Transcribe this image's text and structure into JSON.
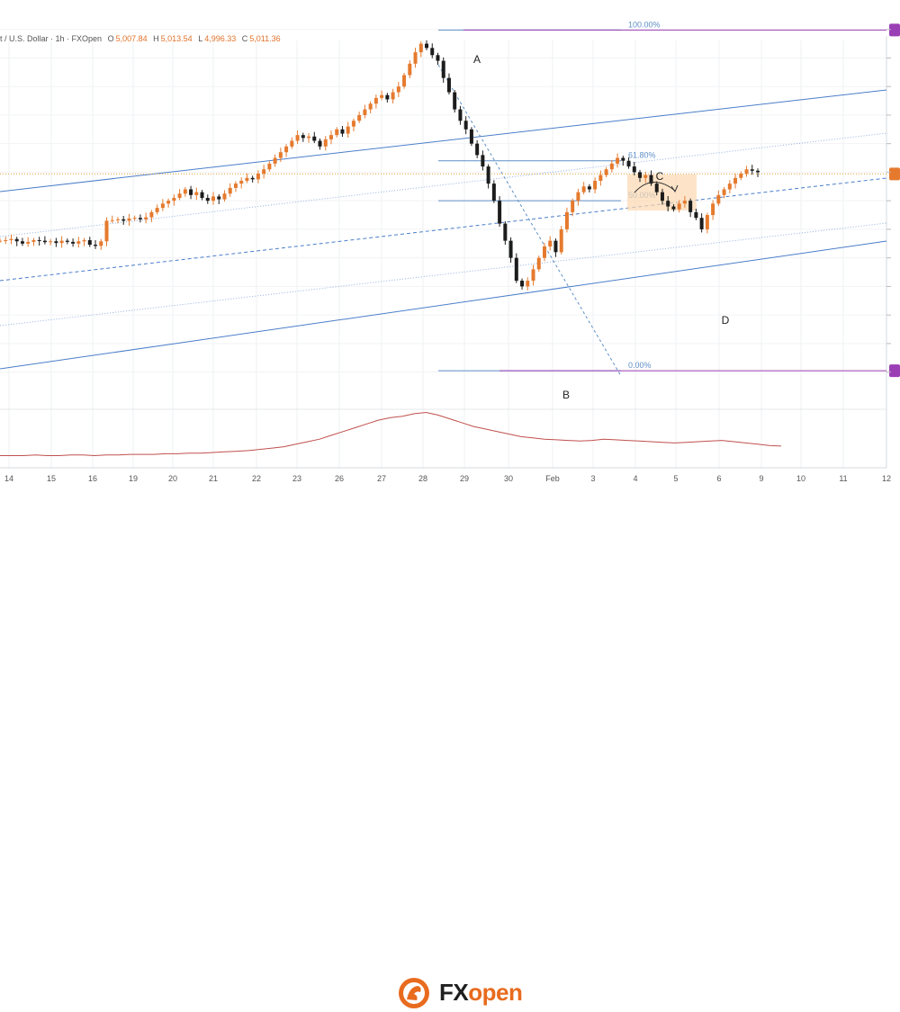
{
  "header": {
    "symbol": "t / U.S. Dollar · 1h · FXOpen",
    "open_label": "O",
    "open": "5,007.84",
    "high_label": "H",
    "high": "5,013.54",
    "low_label": "L",
    "low": "4,996.33",
    "close_label": "C",
    "close": "5,011.36"
  },
  "colors": {
    "up": "#e57a2e",
    "down": "#1c1c1c",
    "channel": "#4a7ec9",
    "fib": "#5e8fc6",
    "purple": "#9b3fb5",
    "oscillator": "#c0504d",
    "zone": "#fcd9b0",
    "price_line": "#e0a23b"
  },
  "chart_data": {
    "type": "candlestick",
    "x_tick_labels": [
      "14",
      "15",
      "16",
      "19",
      "20",
      "21",
      "22",
      "23",
      "26",
      "27",
      "28",
      "29",
      "30",
      "Feb",
      "3",
      "4",
      "5",
      "6",
      "9",
      "10",
      "11",
      "12"
    ],
    "ohlc_close_path": [
      4860,
      4862,
      4866,
      4858,
      4850,
      4856,
      4862,
      4860,
      4855,
      4858,
      4852,
      4860,
      4856,
      4850,
      4858,
      4862,
      4846,
      4842,
      4858,
      4930,
      4932,
      4935,
      4930,
      4938,
      4940,
      4935,
      4942,
      4960,
      4975,
      4990,
      5000,
      5010,
      5025,
      5040,
      5020,
      5030,
      5010,
      5000,
      5015,
      5005,
      5025,
      5045,
      5060,
      5070,
      5080,
      5075,
      5095,
      5110,
      5130,
      5150,
      5170,
      5190,
      5210,
      5230,
      5220,
      5225,
      5210,
      5190,
      5215,
      5230,
      5250,
      5235,
      5260,
      5280,
      5300,
      5320,
      5340,
      5360,
      5370,
      5355,
      5380,
      5400,
      5440,
      5480,
      5520,
      5550,
      5535,
      5510,
      5490,
      5430,
      5380,
      5320,
      5280,
      5250,
      5200,
      5160,
      5120,
      5060,
      5000,
      4920,
      4860,
      4800,
      4720,
      4700,
      4720,
      4760,
      4800,
      4840,
      4860,
      4820,
      4900,
      4960,
      5000,
      5030,
      5050,
      5040,
      5070,
      5090,
      5110,
      5130,
      5150,
      5140,
      5120,
      5100,
      5080,
      5090,
      5060,
      5030,
      5000,
      4980,
      4970,
      4990,
      5000,
      4960,
      4940,
      4900,
      4950,
      4990,
      5020,
      5040,
      5060,
      5080,
      5095,
      5110,
      5105,
      5100
    ],
    "points": [
      {
        "label": "A",
        "price": 5600
      },
      {
        "label": "B",
        "price": 4400
      },
      {
        "label": "C",
        "price": 5115
      },
      {
        "label": "D",
        "price": 4865
      }
    ],
    "fib_levels": [
      {
        "label": "100.00%",
        "price": 5598
      },
      {
        "label": "61.80%",
        "price": 5140
      },
      {
        "label": "50.00%",
        "price": 5000
      },
      {
        "label": "0.00%",
        "price": 4405
      }
    ],
    "oscillator": [
      12,
      12,
      12,
      13,
      12,
      12,
      13,
      13,
      12,
      13,
      13,
      14,
      14,
      14,
      15,
      15,
      16,
      16,
      17,
      18,
      19,
      20,
      22,
      24,
      26,
      30,
      34,
      38,
      44,
      50,
      56,
      62,
      68,
      72,
      74,
      78,
      80,
      76,
      70,
      64,
      58,
      54,
      50,
      46,
      42,
      40,
      38,
      37,
      36,
      35,
      36,
      38,
      37,
      36,
      35,
      34,
      33,
      32,
      33,
      34,
      35,
      36,
      34,
      32,
      30,
      28,
      27
    ]
  },
  "footer": {
    "logo_fx": "FX",
    "logo_open": "open"
  }
}
